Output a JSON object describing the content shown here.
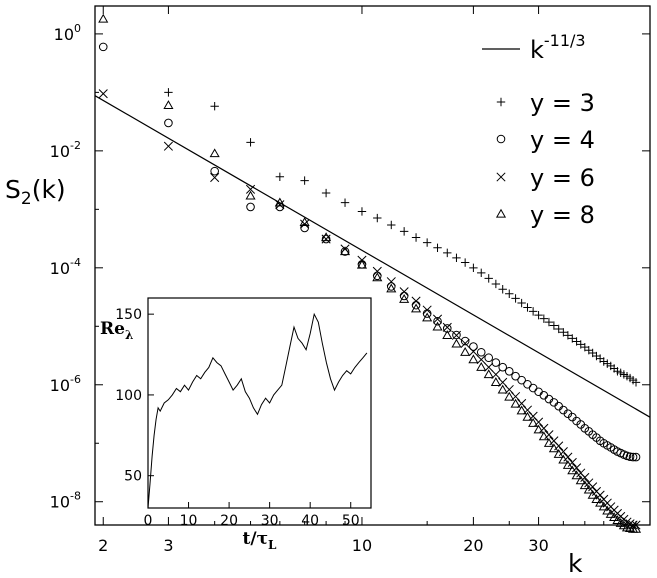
{
  "chart_data": [
    {
      "type": "scatter",
      "xscale": "log",
      "yscale": "log",
      "xlim": [
        1.9,
        60
      ],
      "ylim": [
        4e-09,
        3
      ],
      "xlabel": "k",
      "ylabel": "S",
      "ylabel_sub": "2",
      "ylabel_suffix": "(k)",
      "x_ticks": [
        2,
        3,
        10,
        20,
        30
      ],
      "x_tick_labels": [
        "2",
        "3",
        "10",
        "20",
        "30"
      ],
      "y_ticks": [
        1,
        0.01,
        0.0001,
        1e-06,
        1e-08
      ],
      "y_tick_labels": [
        {
          "base": "10",
          "exp": "0"
        },
        {
          "base": "10",
          "exp": "-2"
        },
        {
          "base": "10",
          "exp": "-4"
        },
        {
          "base": "10",
          "exp": "-6"
        },
        {
          "base": "10",
          "exp": "-8"
        }
      ],
      "grid": false,
      "legend_position": "top-right",
      "reference_line": {
        "label_base": "k",
        "label_exp": "-11/3",
        "exponent": -3.6667,
        "anchor_x": 10,
        "anchor_y": 0.000199
      },
      "series": [
        {
          "name": "y = 3",
          "marker": "plus",
          "x": [
            3,
            4,
            5,
            6,
            7,
            8,
            9,
            10,
            11,
            12,
            13,
            14,
            15,
            16,
            17,
            18,
            19,
            20,
            21,
            22,
            23,
            24,
            25,
            26,
            27,
            28,
            29,
            30,
            31,
            32,
            33,
            34,
            35,
            36,
            37,
            38,
            39,
            40,
            41,
            42,
            43,
            44,
            45,
            46,
            47,
            48,
            49,
            50,
            51,
            52,
            53,
            54,
            55
          ],
          "y": [
            0.1,
            0.058,
            0.014,
            0.0036,
            0.0031,
            0.0019,
            0.0013,
            0.00092,
            0.00071,
            0.00054,
            0.00042,
            0.00033,
            0.00027,
            0.00022,
            0.00018,
            0.000148,
            0.000123,
            0.0001,
            8.2e-05,
            6.6e-05,
            5.3e-05,
            4.3e-05,
            3.6e-05,
            3e-05,
            2.5e-05,
            2.1e-05,
            1.8e-05,
            1.55e-05,
            1.35e-05,
            1.18e-05,
            1.03e-05,
            9e-06,
            7.9e-06,
            7e-06,
            6.2e-06,
            5.5e-06,
            4.9e-06,
            4.4e-06,
            3.9e-06,
            3.5e-06,
            3.1e-06,
            2.8e-06,
            2.5e-06,
            2.3e-06,
            2.1e-06,
            1.9e-06,
            1.7e-06,
            1.6e-06,
            1.5e-06,
            1.4e-06,
            1.3e-06,
            1.2e-06,
            1.1e-06
          ]
        },
        {
          "name": "y = 4",
          "marker": "circle",
          "x": [
            2,
            3,
            4,
            5,
            6,
            7,
            8,
            9,
            10,
            11,
            12,
            13,
            14,
            15,
            16,
            17,
            18,
            19,
            20,
            21,
            22,
            23,
            24,
            25,
            26,
            27,
            28,
            29,
            30,
            31,
            32,
            33,
            34,
            35,
            36,
            37,
            38,
            39,
            40,
            41,
            42,
            43,
            44,
            45,
            46,
            47,
            48,
            49,
            50,
            51,
            52,
            53,
            54,
            55
          ],
          "y": [
            0.6,
            0.03,
            0.0045,
            0.0011,
            0.0011,
            0.00048,
            0.00031,
            0.00019,
            0.000115,
            7.3e-05,
            4.8e-05,
            3.3e-05,
            2.3e-05,
            1.65e-05,
            1.22e-05,
            9.2e-06,
            7.1e-06,
            5.6e-06,
            4.5e-06,
            3.6e-06,
            2.9e-06,
            2.4e-06,
            2e-06,
            1.7e-06,
            1.4e-06,
            1.2e-06,
            1.02e-06,
            8.8e-07,
            7.6e-07,
            6.6e-07,
            5.7e-07,
            5e-07,
            4.3e-07,
            3.7e-07,
            3.2e-07,
            2.8e-07,
            2.4e-07,
            2.1e-07,
            1.8e-07,
            1.6e-07,
            1.4e-07,
            1.25e-07,
            1.1e-07,
            1e-07,
            9.2e-08,
            8.5e-08,
            7.8e-08,
            7.2e-08,
            6.8e-08,
            6.4e-08,
            6.1e-08,
            5.9e-08,
            5.8e-08,
            5.8e-08
          ]
        },
        {
          "name": "y = 6",
          "marker": "cross",
          "x": [
            2,
            3,
            4,
            5,
            6,
            7,
            8,
            9,
            10,
            11,
            12,
            13,
            14,
            15,
            16,
            17,
            18,
            19,
            20,
            21,
            22,
            23,
            24,
            25,
            26,
            27,
            28,
            29,
            30,
            31,
            32,
            33,
            34,
            35,
            36,
            37,
            38,
            39,
            40,
            41,
            42,
            43,
            44,
            45,
            46,
            47,
            48,
            49,
            50,
            51,
            52,
            53,
            54,
            55
          ],
          "y": [
            0.095,
            0.012,
            0.0035,
            0.0022,
            0.0012,
            0.00056,
            0.00031,
            0.00021,
            0.000135,
            8.7e-05,
            5.8e-05,
            3.9e-05,
            2.7e-05,
            1.9e-05,
            1.33e-05,
            9.6e-06,
            7e-06,
            5.1e-06,
            3.7e-06,
            2.7e-06,
            2e-06,
            1.5e-06,
            1.1e-06,
            8.3e-07,
            6.3e-07,
            4.8e-07,
            3.7e-07,
            2.9e-07,
            2.3e-07,
            1.8e-07,
            1.4e-07,
            1.1e-07,
            9e-08,
            7.2e-08,
            5.8e-08,
            4.7e-08,
            3.8e-08,
            3.1e-08,
            2.6e-08,
            2.1e-08,
            1.8e-08,
            1.5e-08,
            1.3e-08,
            1.1e-08,
            9.5e-09,
            8.2e-09,
            7.2e-09,
            6.3e-09,
            5.6e-09,
            5e-09,
            4.5e-09,
            4.2e-09,
            4e-09,
            4e-09
          ]
        },
        {
          "name": "y = 8",
          "marker": "triangle",
          "x": [
            2,
            3,
            4,
            5,
            6,
            7,
            8,
            9,
            10,
            11,
            12,
            13,
            14,
            15,
            16,
            17,
            18,
            19,
            20,
            21,
            22,
            23,
            24,
            25,
            26,
            27,
            28,
            29,
            30,
            31,
            32,
            33,
            34,
            35,
            36,
            37,
            38,
            39,
            40,
            41,
            42,
            43,
            44,
            45,
            46,
            47,
            48,
            49,
            50,
            51,
            52,
            53,
            54,
            55
          ],
          "y": [
            1.8,
            0.06,
            0.009,
            0.0017,
            0.0013,
            0.0006,
            0.00033,
            0.00019,
            0.000112,
            6.8e-05,
            4.4e-05,
            2.9e-05,
            2e-05,
            1.4e-05,
            9.8e-06,
            7e-06,
            5e-06,
            3.6e-06,
            2.7e-06,
            2e-06,
            1.5e-06,
            1.1e-06,
            8.2e-07,
            6.2e-07,
            4.7e-07,
            3.6e-07,
            2.8e-07,
            2.2e-07,
            1.7e-07,
            1.3e-07,
            1e-07,
            8.1e-08,
            6.5e-08,
            5.2e-08,
            4.2e-08,
            3.4e-08,
            2.8e-08,
            2.3e-08,
            1.9e-08,
            1.6e-08,
            1.3e-08,
            1.1e-08,
            9.5e-09,
            8.2e-09,
            7e-09,
            6.1e-09,
            5.4e-09,
            4.8e-09,
            4.3e-09,
            3.9e-09,
            3.6e-09,
            3.5e-09,
            3.4e-09,
            3.4e-09
          ]
        }
      ]
    },
    {
      "type": "line",
      "inset": true,
      "xlim": [
        0,
        55
      ],
      "ylim": [
        30,
        160
      ],
      "x_ticks": [
        0,
        10,
        20,
        30,
        40,
        50
      ],
      "x_tick_labels": [
        "0",
        "10",
        "20",
        "30",
        "40",
        "50"
      ],
      "y_ticks": [
        50,
        100,
        150
      ],
      "y_tick_labels": [
        "50",
        "100",
        "150"
      ],
      "xlabel": "t/τ",
      "xlabel_sub": "L",
      "ylabel": "Re",
      "ylabel_sub": "λ",
      "grid": false,
      "series": [
        {
          "x": [
            0,
            0.5,
            1,
            1.5,
            2,
            2.5,
            3,
            4,
            5,
            6,
            7,
            8,
            9,
            10,
            11,
            12,
            13,
            14,
            15,
            16,
            17,
            18,
            19,
            20,
            21,
            22,
            23,
            24,
            25,
            26,
            27,
            28,
            29,
            30,
            31,
            32,
            33,
            34,
            35,
            36,
            37,
            38,
            39,
            40,
            41,
            42,
            43,
            44,
            45,
            46,
            47,
            48,
            49,
            50,
            51,
            52,
            53,
            54
          ],
          "y": [
            30,
            45,
            62,
            75,
            85,
            92,
            90,
            95,
            97,
            100,
            104,
            102,
            106,
            103,
            108,
            112,
            110,
            114,
            117,
            123,
            120,
            118,
            113,
            108,
            103,
            106,
            110,
            102,
            98,
            92,
            88,
            94,
            98,
            95,
            100,
            103,
            106,
            118,
            130,
            142,
            135,
            132,
            128,
            138,
            150,
            145,
            132,
            120,
            110,
            103,
            108,
            112,
            115,
            113,
            117,
            120,
            123,
            126
          ]
        }
      ]
    }
  ]
}
